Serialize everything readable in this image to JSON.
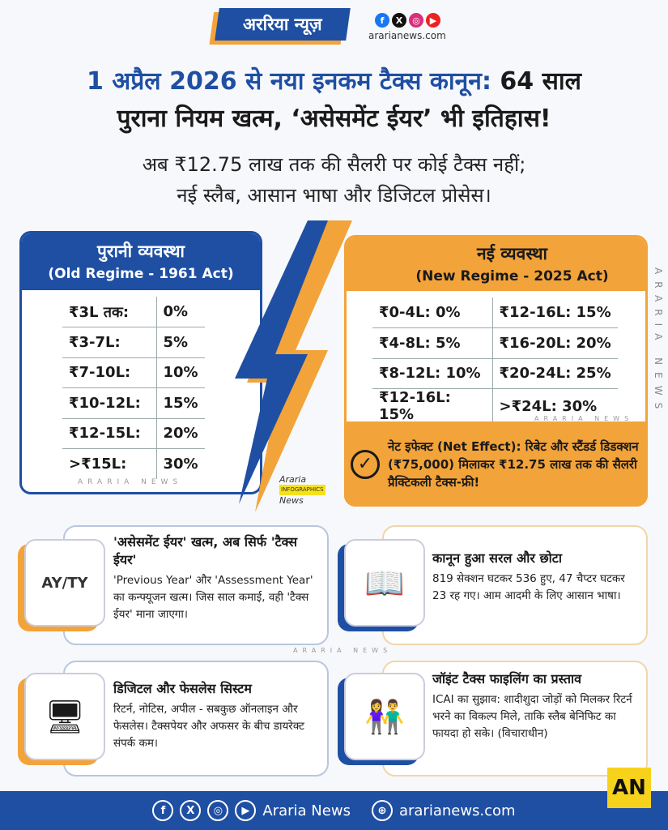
{
  "header": {
    "brand": "अररिया न्यूज़",
    "site": "ararianews.com",
    "social": [
      "facebook-icon",
      "x-icon",
      "instagram-icon",
      "youtube-icon"
    ]
  },
  "title": {
    "blue": "1 अप्रैल 2026 से नया इनकम टैक्स कानून:",
    "black1": "64 साल",
    "line2": "पुराना नियम खत्म, ‘असेसमेंट ईयर’ भी इतिहास!"
  },
  "subtitle": {
    "line1": "अब ₹12.75 लाख तक की सैलरी पर कोई टैक्स नहीं;",
    "line2": "नई स्लैब, आसान भाषा और डिजिटल प्रोसेस।"
  },
  "old_regime": {
    "title": "पुरानी व्यवस्था",
    "subtitle": "(Old Regime - 1961 Act)",
    "rows": [
      [
        "₹3L तक:",
        "0%"
      ],
      [
        "₹3-7L:",
        "5%"
      ],
      [
        "₹7-10L:",
        "10%"
      ],
      [
        "₹10-12L:",
        "15%"
      ],
      [
        "₹12-15L:",
        "20%"
      ],
      [
        ">₹15L:",
        "30%"
      ]
    ]
  },
  "new_regime": {
    "title": "नई व्यवस्था",
    "subtitle": "(New Regime - 2025 Act)",
    "rows": [
      [
        "₹0-4L: 0%",
        "₹12-16L: 15%"
      ],
      [
        "₹4-8L: 5%",
        "₹16-20L: 20%"
      ],
      [
        "₹8-12L: 10%",
        "₹20-24L: 25%"
      ],
      [
        "₹12-16L: 15%",
        ">₹24L: 30%"
      ]
    ],
    "net_effect": "नेट इफेक्ट (Net Effect): रिबेट और स्टैंडर्ड डिडक्शन (₹75,000) मिलाकर ₹12.75 लाख तक की सैलरी प्रैक्टिकली टैक्स-फ्री!"
  },
  "watermark": "ARARIA NEWS",
  "stamp": {
    "line1": "Araria",
    "line2": "INFOGRAPHICS",
    "line3": "News"
  },
  "cards": [
    {
      "title": "'असेसमेंट ईयर' खत्म, अब सिर्फ 'टैक्स ईयर'",
      "body": "'Previous Year' और 'Assessment Year' का कन्फ्यूजन खत्म। जिस साल कमाई, वही 'टैक्स ईयर' माना जाएगा।",
      "icon_text": "AY/TY"
    },
    {
      "title": "कानून हुआ सरल और छोटा",
      "body": "819 सेक्शन घटकर 536 हुए, 47 चैप्टर घटकर 23 रह गए। आम आदमी के लिए आसान भाषा।"
    },
    {
      "title": "डिजिटल और फेसलेस सिस्टम",
      "body": "रिटर्न, नोटिस, अपील - सबकुछ ऑनलाइन और फेसलेस। टैक्सपेयर और अफसर के बीच डायरेक्ट संपर्क कम।"
    },
    {
      "title": "जॉइंट टैक्स फाइलिंग का प्रस्ताव",
      "body": "ICAI का सुझाव: शादीशुदा जोड़ों को मिलकर रिटर्न भरने का विकल्प मिले, ताकि स्लैब बेनिफिट का फायदा हो सके। (विचाराधीन)"
    }
  ],
  "footer": {
    "name": "Araria News",
    "site": "ararianews.com",
    "logo": "AN"
  },
  "colors": {
    "blue": "#1f4fa3",
    "orange": "#f2a33a"
  }
}
